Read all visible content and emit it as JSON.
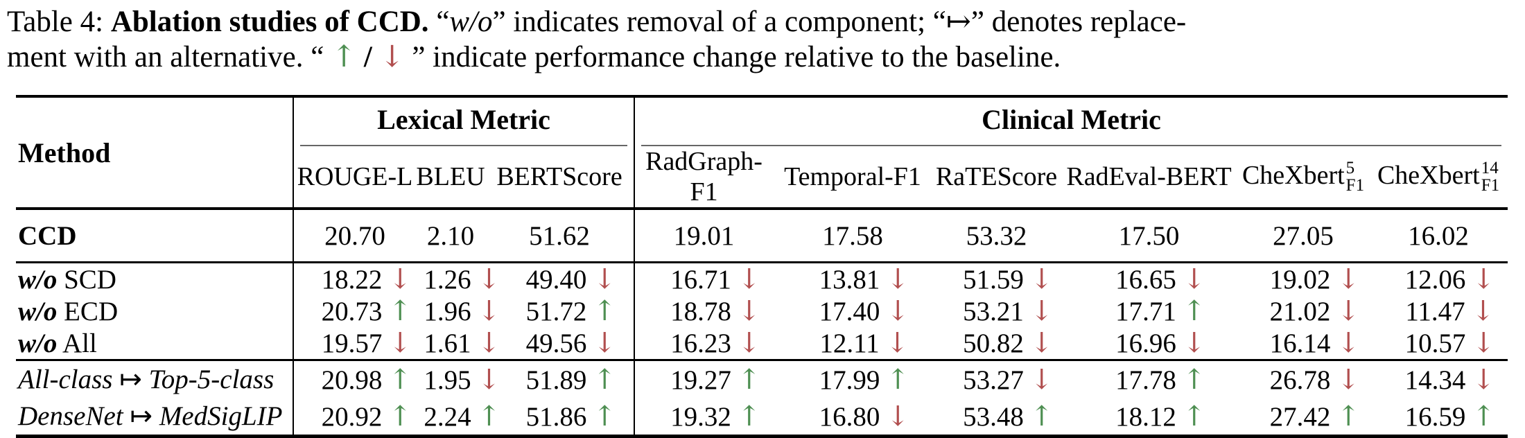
{
  "colors": {
    "green": "#4e8f52",
    "red": "#b14f4f",
    "rule_gray": "#666666"
  },
  "icons": {
    "up_arrow": "↑",
    "down_arrow": "↓",
    "mapsto": "↦"
  },
  "caption": {
    "l1_prefix": "Table 4: ",
    "l1_bold": "Ablation studies of CCD.",
    "l1_q1": " “",
    "l1_italic": "w/o",
    "l1_rest": "” indicates removal of a component; “↦” denotes replace-",
    "l2_pre": "ment with an alternative. “ ",
    "l2_up": "↑",
    "l2_slash": " / ",
    "l2_down": "↓",
    "l2_rest": " ” indicate performance change relative to the baseline."
  },
  "table": {
    "method_header": "Method",
    "groups": [
      {
        "label": "Lexical Metric",
        "columns": [
          {
            "base": "ROUGE-L"
          },
          {
            "base": "BLEU"
          },
          {
            "base": "BERTScore"
          }
        ]
      },
      {
        "label": "Clinical Metric",
        "columns": [
          {
            "base": "RadGraph-F1"
          },
          {
            "base": "Temporal-F1"
          },
          {
            "base": "RaTEScore"
          },
          {
            "base": "RadEval-BERT"
          },
          {
            "base": "CheXbert",
            "sup": "5",
            "sub": "F1"
          },
          {
            "base": "CheXbert",
            "sup": "14",
            "sub": "F1"
          }
        ]
      }
    ],
    "sections": [
      {
        "rows": [
          {
            "label_parts": [
              {
                "t": "CCD",
                "s": "b"
              }
            ],
            "cells": [
              {
                "v": "20.70"
              },
              {
                "v": "2.10"
              },
              {
                "v": "51.62"
              },
              {
                "v": "19.01"
              },
              {
                "v": "17.58"
              },
              {
                "v": "53.32"
              },
              {
                "v": "17.50"
              },
              {
                "v": "27.05"
              },
              {
                "v": "16.02"
              }
            ]
          }
        ]
      },
      {
        "rows": [
          {
            "label_parts": [
              {
                "t": "w/o",
                "s": "bi"
              },
              {
                "t": " SCD",
                "s": "n"
              }
            ],
            "cells": [
              {
                "v": "18.22",
                "d": "down"
              },
              {
                "v": "1.26",
                "d": "down"
              },
              {
                "v": "49.40",
                "d": "down"
              },
              {
                "v": "16.71",
                "d": "down"
              },
              {
                "v": "13.81",
                "d": "down"
              },
              {
                "v": "51.59",
                "d": "down"
              },
              {
                "v": "16.65",
                "d": "down"
              },
              {
                "v": "19.02",
                "d": "down"
              },
              {
                "v": "12.06",
                "d": "down"
              }
            ]
          },
          {
            "label_parts": [
              {
                "t": "w/o",
                "s": "bi"
              },
              {
                "t": " ECD",
                "s": "n"
              }
            ],
            "cells": [
              {
                "v": "20.73",
                "d": "up"
              },
              {
                "v": "1.96",
                "d": "down"
              },
              {
                "v": "51.72",
                "d": "up"
              },
              {
                "v": "18.78",
                "d": "down"
              },
              {
                "v": "17.40",
                "d": "down"
              },
              {
                "v": "53.21",
                "d": "down"
              },
              {
                "v": "17.71",
                "d": "up"
              },
              {
                "v": "21.02",
                "d": "down"
              },
              {
                "v": "11.47",
                "d": "down"
              }
            ]
          },
          {
            "label_parts": [
              {
                "t": "w/o",
                "s": "bi"
              },
              {
                "t": " All",
                "s": "n"
              }
            ],
            "cells": [
              {
                "v": "19.57",
                "d": "down"
              },
              {
                "v": "1.61",
                "d": "down"
              },
              {
                "v": "49.56",
                "d": "down"
              },
              {
                "v": "16.23",
                "d": "down"
              },
              {
                "v": "12.11",
                "d": "down"
              },
              {
                "v": "50.82",
                "d": "down"
              },
              {
                "v": "16.96",
                "d": "down"
              },
              {
                "v": "16.14",
                "d": "down"
              },
              {
                "v": "10.57",
                "d": "down"
              }
            ]
          }
        ]
      },
      {
        "rows": [
          {
            "label_parts": [
              {
                "t": "All-class",
                "s": "i"
              },
              {
                "t": " ↦ ",
                "s": "m"
              },
              {
                "t": "Top-5-class",
                "s": "i"
              }
            ],
            "cells": [
              {
                "v": "20.98",
                "d": "up"
              },
              {
                "v": "1.95",
                "d": "down"
              },
              {
                "v": "51.89",
                "d": "up"
              },
              {
                "v": "19.27",
                "d": "up"
              },
              {
                "v": "17.99",
                "d": "up"
              },
              {
                "v": "53.27",
                "d": "down"
              },
              {
                "v": "17.78",
                "d": "up"
              },
              {
                "v": "26.78",
                "d": "down"
              },
              {
                "v": "14.34",
                "d": "down"
              }
            ]
          },
          {
            "label_parts": [
              {
                "t": "DenseNet",
                "s": "i"
              },
              {
                "t": " ↦ ",
                "s": "m"
              },
              {
                "t": "MedSigLIP",
                "s": "i"
              }
            ],
            "cells": [
              {
                "v": "20.92",
                "d": "up"
              },
              {
                "v": "2.24",
                "d": "up"
              },
              {
                "v": "51.86",
                "d": "up"
              },
              {
                "v": "19.32",
                "d": "up"
              },
              {
                "v": "16.80",
                "d": "down"
              },
              {
                "v": "53.48",
                "d": "up"
              },
              {
                "v": "18.12",
                "d": "up"
              },
              {
                "v": "27.42",
                "d": "up"
              },
              {
                "v": "16.59",
                "d": "up"
              }
            ]
          }
        ]
      }
    ]
  }
}
